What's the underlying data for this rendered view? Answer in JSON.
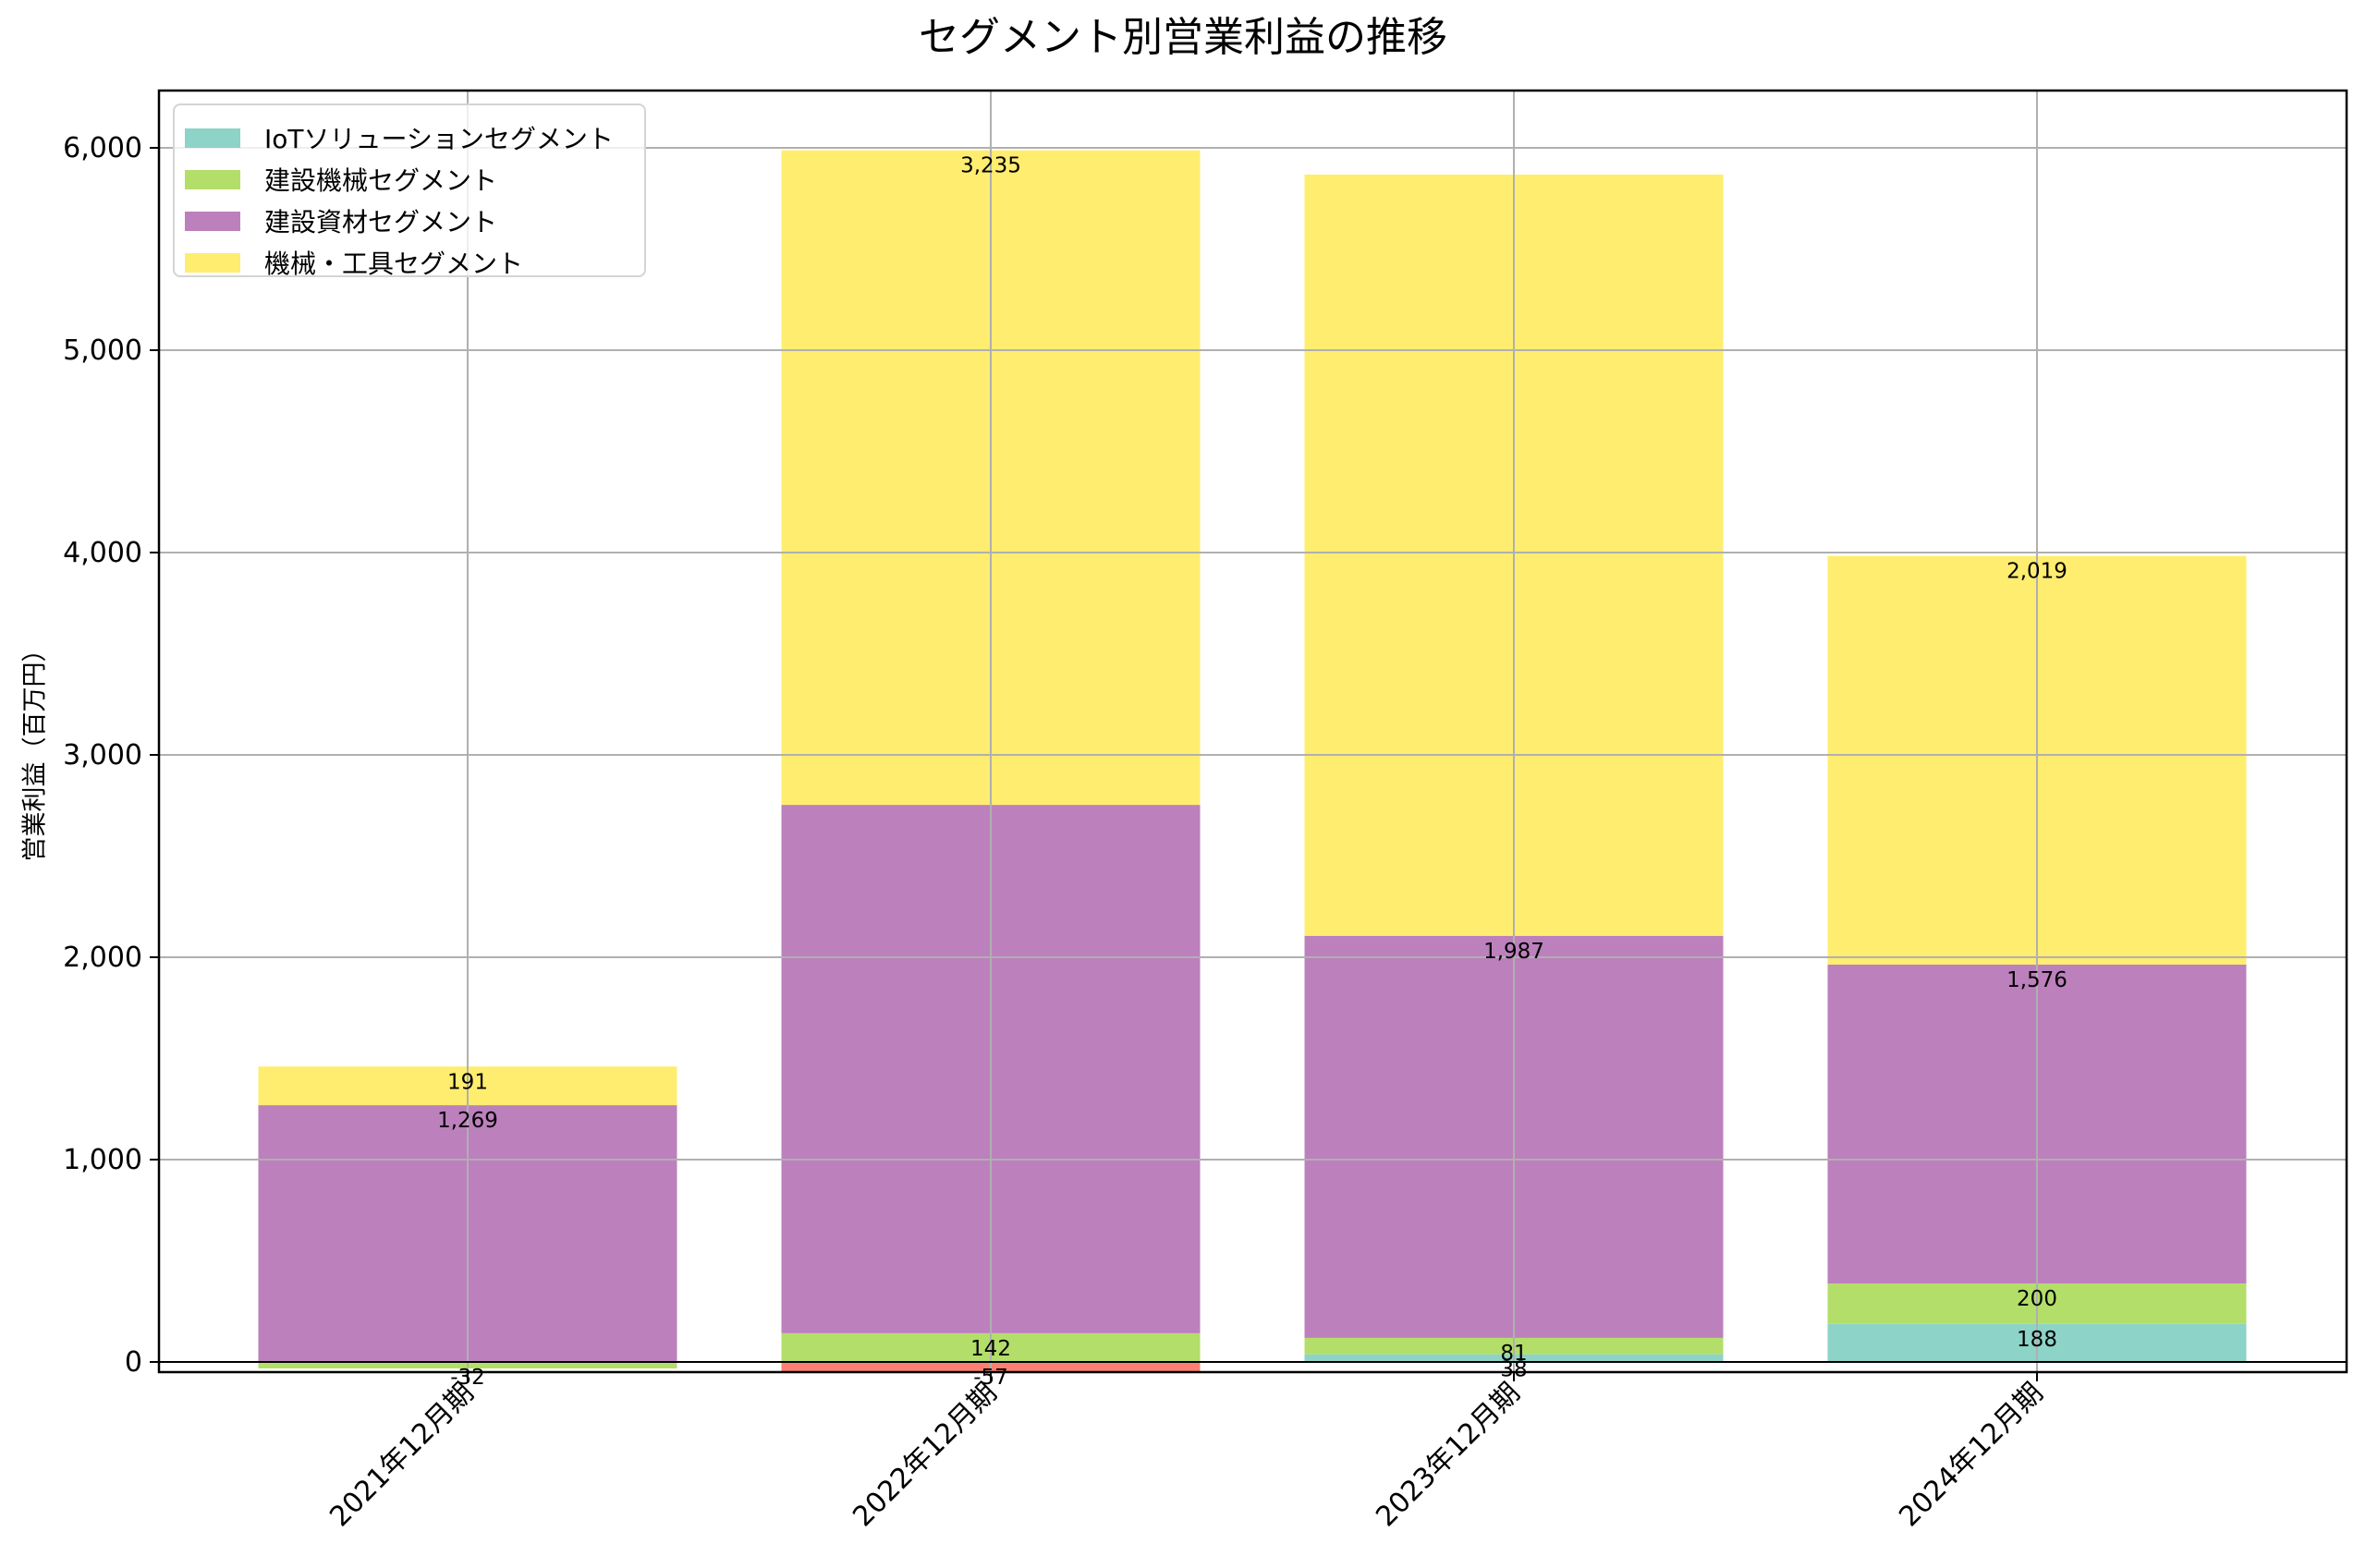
{
  "chart_data": {
    "type": "bar",
    "stacked": true,
    "title": "セグメント別営業利益の推移",
    "xlabel": "",
    "ylabel": "営業利益（百万円）",
    "ylim": [
      -52,
      6283
    ],
    "yticks": [
      0,
      1000,
      2000,
      3000,
      4000,
      5000,
      6000
    ],
    "ytick_labels": [
      "0",
      "1,000",
      "2,000",
      "3,000",
      "4,000",
      "5,000",
      "6,000"
    ],
    "grid": true,
    "legend_position": "upper left",
    "categories": [
      "2021年12月期",
      "2022年12月期",
      "2023年12月期",
      "2024年12月期"
    ],
    "series": [
      {
        "name": "IoTソリューションセグメント",
        "color": "#8dd3c7",
        "negative_color": "#fb8072",
        "values": [
          null,
          -57,
          38,
          188
        ],
        "labels_shown": [
          false,
          true,
          true,
          true
        ]
      },
      {
        "name": "建設機械セグメント",
        "color": "#b3de69",
        "values": [
          -32,
          142,
          81,
          200
        ],
        "labels_shown": [
          true,
          true,
          true,
          true
        ]
      },
      {
        "name": "建設資材セグメント",
        "color": "#bc80bd",
        "values": [
          1269,
          2611,
          1987,
          1576
        ],
        "labels_shown": [
          true,
          false,
          true,
          true
        ]
      },
      {
        "name": "機械・工具セグメント",
        "color": "#ffed6f",
        "values": [
          191,
          3235,
          3762,
          2019
        ],
        "labels_shown": [
          true,
          true,
          false,
          true
        ]
      }
    ]
  }
}
